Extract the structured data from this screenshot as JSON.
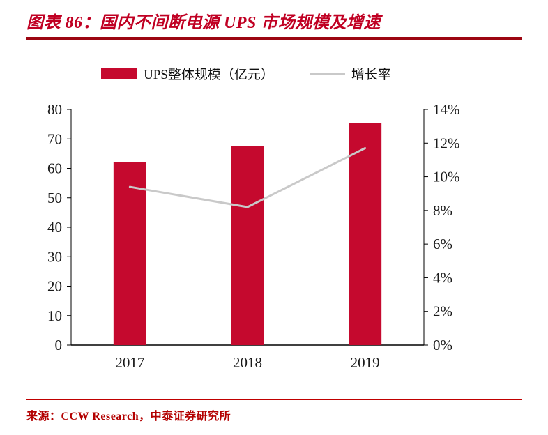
{
  "header": {
    "title": "图表 86：国内不间断电源 UPS 市场规模及增速"
  },
  "legend": {
    "bar_label": "UPS整体规模（亿元）",
    "line_label": "增长率"
  },
  "footer": {
    "source": "来源：CCW Research，中泰证券研究所"
  },
  "colors": {
    "title_red": "#c00023",
    "rule_dark": "#9c0612",
    "bar": "#c5092e",
    "line": "#c9c9c9",
    "footer_rule": "#c00000",
    "source_red": "#b30000",
    "axis": "#000000",
    "tick_text": "#1a1a1a"
  },
  "chart_data": {
    "type": "bar",
    "title": "国内不间断电源 UPS 市场规模及增速",
    "categories": [
      "2017",
      "2018",
      "2019"
    ],
    "series": [
      {
        "name": "UPS整体规模（亿元）",
        "type": "bar",
        "axis": "left",
        "values": [
          62.2,
          67.5,
          75.3
        ]
      },
      {
        "name": "增长率",
        "type": "line",
        "axis": "right",
        "values": [
          9.4,
          8.2,
          11.7
        ]
      }
    ],
    "left_axis": {
      "min": 0,
      "max": 80,
      "step": 10,
      "ticks": [
        "80",
        "70",
        "60",
        "50",
        "40",
        "30",
        "20",
        "10",
        "0"
      ]
    },
    "right_axis": {
      "min": 0,
      "max": 14,
      "step": 2,
      "ticks": [
        "14%",
        "12%",
        "10%",
        "8%",
        "6%",
        "4%",
        "2%",
        "0%"
      ]
    },
    "grid": false,
    "legend_position": "top"
  }
}
